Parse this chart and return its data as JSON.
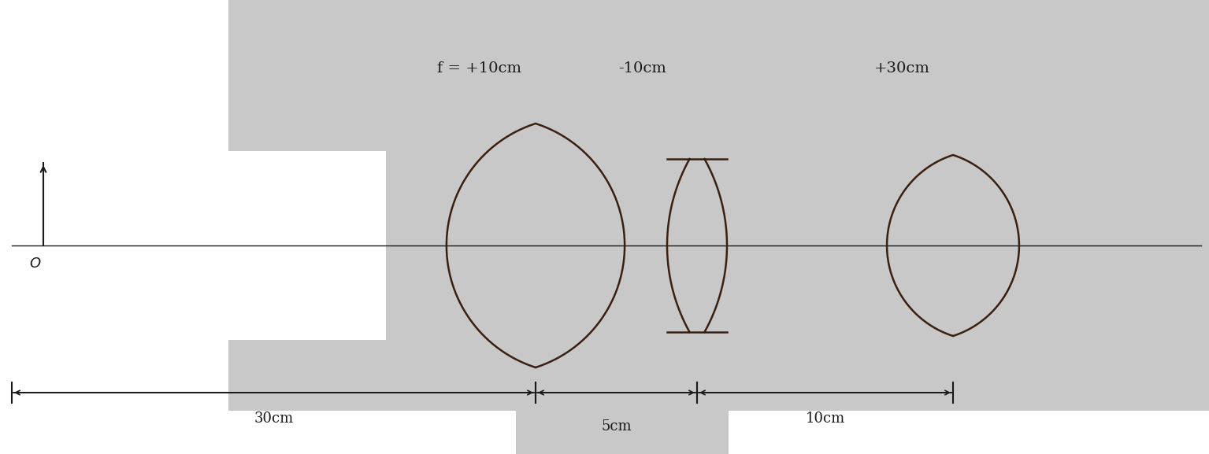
{
  "white_bg": "#ffffff",
  "lens_color": "#3a2010",
  "line_color": "#1a1a1a",
  "fig_width": 15.35,
  "fig_height": 5.77,
  "axis_label_O": "O",
  "distances": [
    "30cm",
    "5cm",
    "10cm"
  ],
  "focal_lengths": [
    "f = +10cm",
    "-10cm",
    "+30cm"
  ],
  "gray_bg": "#c8c8c8",
  "dpi": 100
}
